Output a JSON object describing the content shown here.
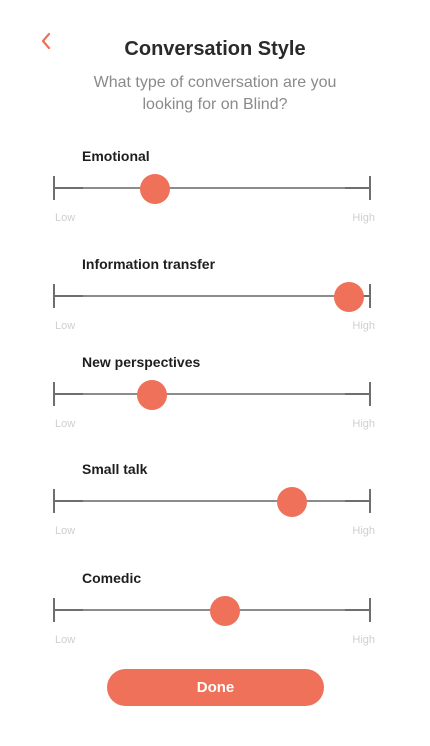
{
  "header": {
    "back_icon": "chevron-left-icon",
    "title": "Conversation Style",
    "subtitle": "What type of conversation are you looking for on Blind?"
  },
  "sliders": [
    {
      "label": "Emotional",
      "low": "Low",
      "high": "High",
      "value": 0.32
    },
    {
      "label": "Information transfer",
      "low": "Low",
      "high": "High",
      "value": 0.93
    },
    {
      "label": "New perspectives",
      "low": "Low",
      "high": "High",
      "value": 0.31
    },
    {
      "label": "Small talk",
      "low": "Low",
      "high": "High",
      "value": 0.75
    },
    {
      "label": "Comedic",
      "low": "Low",
      "high": "High",
      "value": 0.54
    }
  ],
  "done_label": "Done",
  "colors": {
    "accent": "#ef7159",
    "track": "#6e6e6e",
    "hint": "#cfcfcf"
  }
}
